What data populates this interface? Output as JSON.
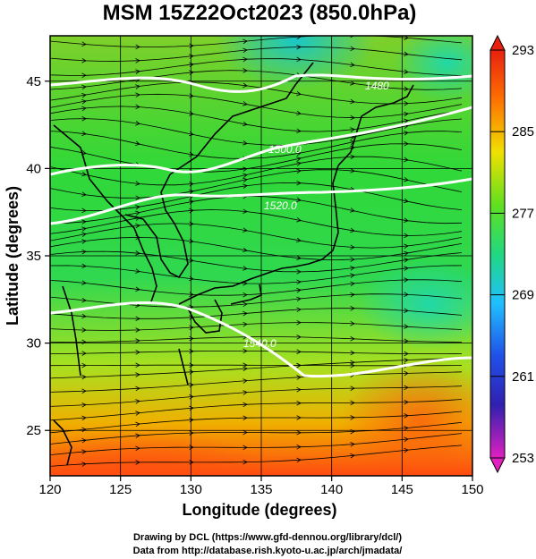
{
  "title": "MSM 15Z22Oct2023 (850.0hPa)",
  "xlabel": "Longitude (degrees)",
  "ylabel": "Latitude  (degrees)",
  "x_ticks": [
    "120",
    "125",
    "130",
    "135",
    "140",
    "145",
    "150"
  ],
  "y_ticks": [
    "25",
    "30",
    "35",
    "40",
    "45"
  ],
  "extent": {
    "lon": [
      120,
      150
    ],
    "lat": [
      22.4,
      47.6
    ]
  },
  "colorbar": {
    "ticks": [
      "293",
      "285",
      "277",
      "269",
      "261",
      "253"
    ],
    "range": [
      253,
      293
    ],
    "colors": [
      "#e020c0",
      "#2030c8",
      "#20b0ff",
      "#10d890",
      "#30e020",
      "#f0e000",
      "#ff6000",
      "#e02010"
    ]
  },
  "contours": [
    {
      "label": "1480",
      "value": 1480
    },
    {
      "label": "1500.0",
      "value": 1500
    },
    {
      "label": "1520.0",
      "value": 1520
    },
    {
      "label": "1540.0",
      "value": 1540
    }
  ],
  "credits": {
    "line1": "Drawing by DCL (https://www.gfd-dennou.org/library/dcl/)",
    "line2": "Data from http://database.rish.kyoto-u.ac.jp/arch/jmadata/"
  }
}
